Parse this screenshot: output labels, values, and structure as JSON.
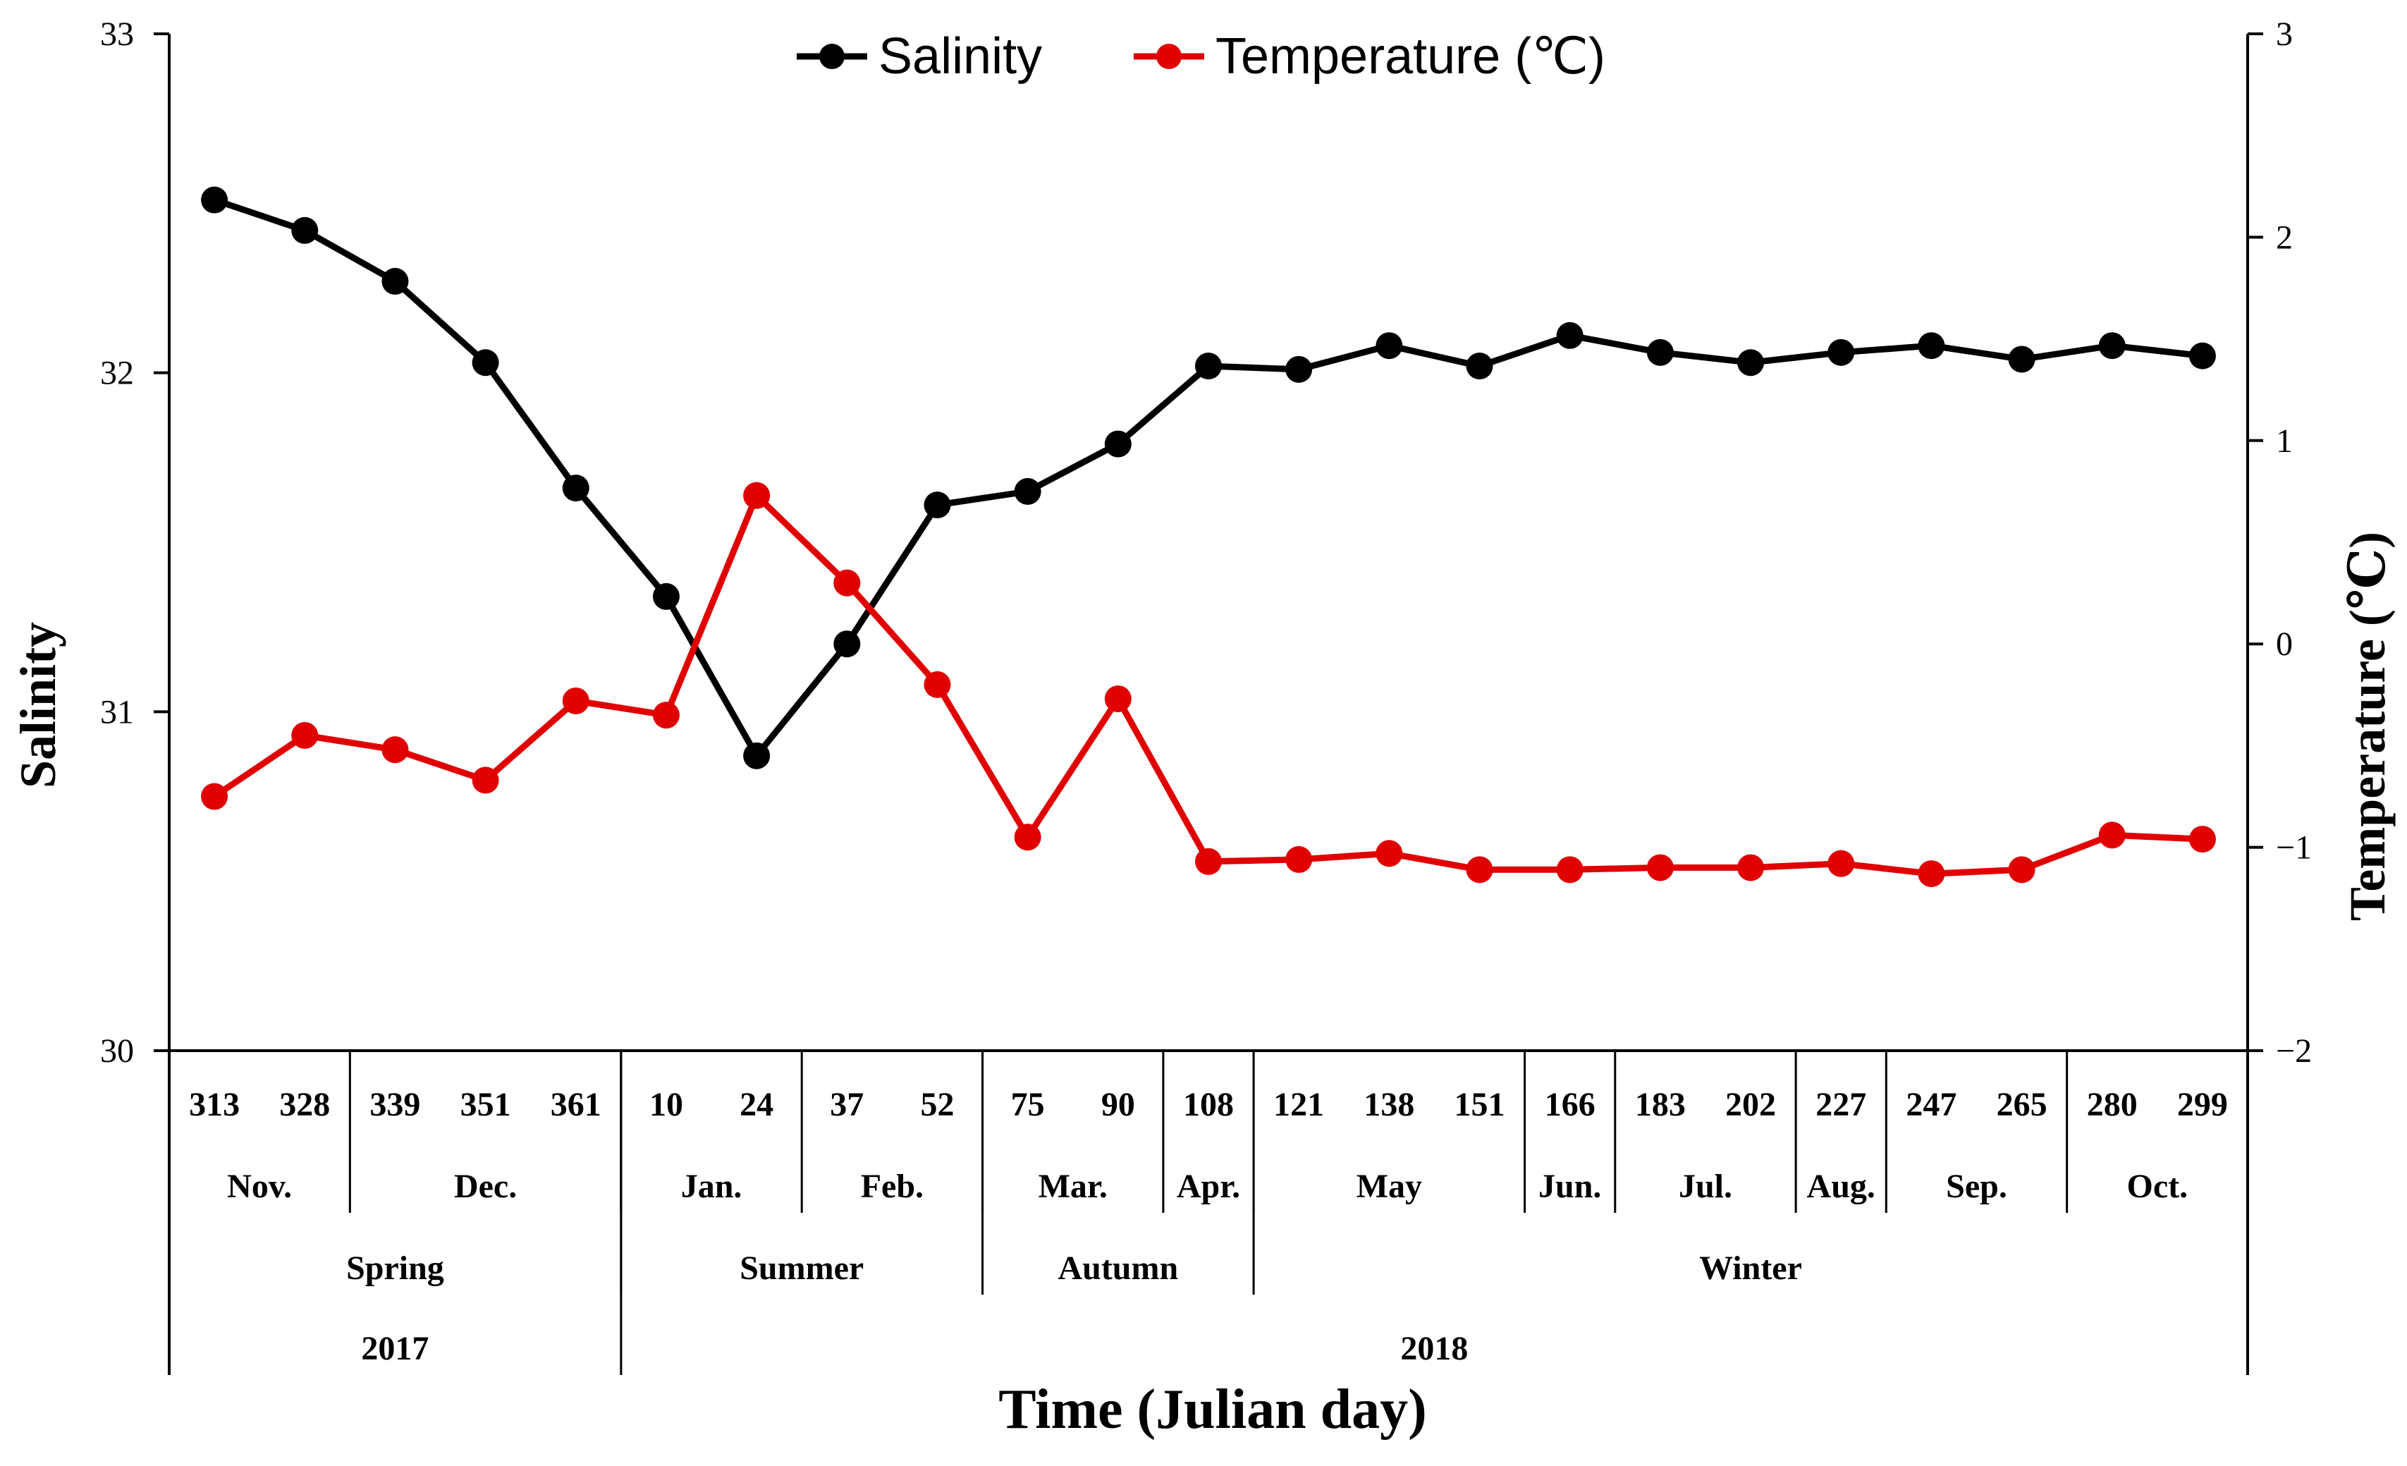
{
  "chart_data": {
    "type": "line",
    "x": [
      "313",
      "328",
      "339",
      "351",
      "361",
      "10",
      "24",
      "37",
      "52",
      "75",
      "90",
      "108",
      "121",
      "138",
      "151",
      "166",
      "183",
      "202",
      "227",
      "247",
      "265",
      "280",
      "299"
    ],
    "series": [
      {
        "name": "Salinity",
        "axis": "left",
        "color": "#000000",
        "values": [
          32.51,
          32.42,
          32.27,
          32.03,
          31.66,
          31.34,
          30.87,
          31.2,
          31.61,
          31.65,
          31.79,
          32.02,
          32.01,
          32.08,
          32.02,
          32.11,
          32.06,
          32.03,
          32.06,
          32.08,
          32.04,
          32.08,
          32.05
        ]
      },
      {
        "name": "Temperature (℃)",
        "axis": "right",
        "color": "#e00000",
        "values": [
          -0.75,
          -0.45,
          -0.52,
          -0.67,
          -0.28,
          -0.35,
          0.73,
          0.3,
          -0.2,
          -0.95,
          -0.27,
          -1.07,
          -1.06,
          -1.03,
          -1.11,
          -1.11,
          -1.1,
          -1.1,
          -1.08,
          -1.13,
          -1.11,
          -0.94,
          -0.96
        ]
      }
    ],
    "left_axis": {
      "label": "Salinity",
      "min": 30,
      "max": 33,
      "ticks": [
        "30",
        "31",
        "32",
        "33"
      ]
    },
    "right_axis": {
      "label": "Temperature (℃)",
      "min": -2,
      "max": 3,
      "ticks": [
        "−2",
        "−1",
        "0",
        "1",
        "2",
        "3"
      ]
    },
    "xlabel": "Time (Julian day)",
    "months": [
      {
        "label": "Nov.",
        "start": 0,
        "end": 2
      },
      {
        "label": "Dec.",
        "start": 2,
        "end": 5
      },
      {
        "label": "Jan.",
        "start": 5,
        "end": 7
      },
      {
        "label": "Feb.",
        "start": 7,
        "end": 9
      },
      {
        "label": "Mar.",
        "start": 9,
        "end": 11
      },
      {
        "label": "Apr.",
        "start": 11,
        "end": 12
      },
      {
        "label": "May",
        "start": 12,
        "end": 15
      },
      {
        "label": "Jun.",
        "start": 15,
        "end": 16
      },
      {
        "label": "Jul.",
        "start": 16,
        "end": 18
      },
      {
        "label": "Aug.",
        "start": 18,
        "end": 19
      },
      {
        "label": "Sep.",
        "start": 19,
        "end": 21
      },
      {
        "label": "Oct.",
        "start": 21,
        "end": 23
      }
    ],
    "seasons": [
      {
        "label": "Spring",
        "start": 0,
        "end": 5
      },
      {
        "label": "Summer",
        "start": 5,
        "end": 9
      },
      {
        "label": "Autumn",
        "start": 9,
        "end": 12
      },
      {
        "label": "Winter",
        "start": 12,
        "end": 23
      }
    ],
    "years": [
      {
        "label": "2017",
        "start": 0,
        "end": 5
      },
      {
        "label": "2018",
        "start": 5,
        "end": 23
      }
    ],
    "legend_position": "top-center"
  }
}
